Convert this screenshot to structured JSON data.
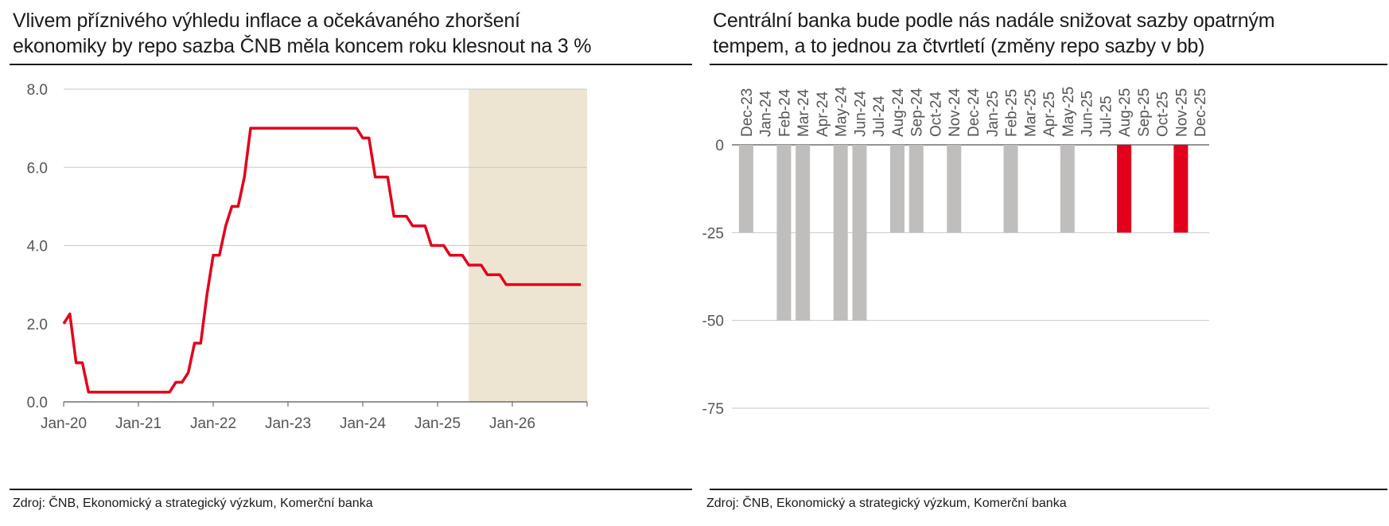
{
  "colors": {
    "accent": "#e3001b",
    "bar_gray": "#c0bdbd",
    "forecast_shade": "#ede5d1",
    "grid": "#c8c8c8",
    "axis_text": "#555555"
  },
  "left": {
    "title_line1": "Vlivem příznivého výhledu inflace a očekávaného zhoršení",
    "title_line2": "ekonomiky by repo sazba ČNB měla koncem roku klesnout na 3 %",
    "source": "Zdroj: ČNB, Ekonomický a strategický výzkum, Komerční banka"
  },
  "right": {
    "title_line1": "Centrální banka bude podle nás nadále snižovat sazby opatrným",
    "title_line2": "tempem, a to jednou za čtvrtletí (změny repo sazby v bb)",
    "source": "Zdroj: ČNB, Ekonomický a strategický výzkum, Komerční banka"
  },
  "chart_data": [
    {
      "type": "line",
      "ylim": [
        0,
        8
      ],
      "y_ticks": [
        "0.0",
        "2.0",
        "4.0",
        "6.0",
        "8.0"
      ],
      "x_ticks": [
        "Jan-20",
        "Jan-21",
        "Jan-22",
        "Jan-23",
        "Jan-24",
        "Jan-25",
        "Jan-26"
      ],
      "x_range": [
        "2020-01",
        "2026-12"
      ],
      "forecast_shade": [
        "2025-06",
        "2026-12"
      ],
      "series": [
        {
          "color": "#e3001b",
          "step": true,
          "x": [
            "2020-01",
            "2020-02",
            "2020-03",
            "2020-04",
            "2020-05",
            "2020-06",
            "2021-06",
            "2021-07",
            "2021-08",
            "2021-09",
            "2021-10",
            "2021-11",
            "2021-12",
            "2022-01",
            "2022-02",
            "2022-03",
            "2022-04",
            "2022-05",
            "2022-06",
            "2022-07",
            "2023-12",
            "2024-01",
            "2024-02",
            "2024-03",
            "2024-05",
            "2024-06",
            "2024-08",
            "2024-09",
            "2024-11",
            "2024-12",
            "2025-02",
            "2025-03",
            "2025-05",
            "2025-06",
            "2025-08",
            "2025-09",
            "2025-11",
            "2025-12",
            "2026-12"
          ],
          "y": [
            2.0,
            2.25,
            1.0,
            1.0,
            0.25,
            0.25,
            0.25,
            0.5,
            0.5,
            0.75,
            1.5,
            1.5,
            2.75,
            3.75,
            3.75,
            4.5,
            5.0,
            5.0,
            5.75,
            7.0,
            7.0,
            6.75,
            6.75,
            5.75,
            5.75,
            4.75,
            4.75,
            4.5,
            4.5,
            4.0,
            4.0,
            3.75,
            3.75,
            3.5,
            3.5,
            3.25,
            3.25,
            3.0,
            3.0
          ]
        }
      ]
    },
    {
      "type": "bar",
      "ylim": [
        -75,
        0
      ],
      "y_ticks": [
        "0",
        "-25",
        "-50",
        "-75"
      ],
      "categories": [
        "Dec-23",
        "Jan-24",
        "Feb-24",
        "Mar-24",
        "Apr-24",
        "May-24",
        "Jun-24",
        "Jul-24",
        "Aug-24",
        "Sep-24",
        "Oct-24",
        "Nov-24",
        "Dec-24",
        "Jan-25",
        "Feb-25",
        "Mar-25",
        "Apr-25",
        "May-25",
        "Jun-25",
        "Jul-25",
        "Aug-25",
        "Sep-25",
        "Oct-25",
        "Nov-25",
        "Dec-25"
      ],
      "values": [
        -25,
        0,
        -50,
        -50,
        0,
        -50,
        -50,
        0,
        -25,
        -25,
        0,
        -25,
        0,
        0,
        -25,
        0,
        0,
        -25,
        0,
        0,
        -25,
        0,
        0,
        -25,
        0
      ],
      "bar_colors": [
        "gray",
        "gray",
        "gray",
        "gray",
        "gray",
        "gray",
        "gray",
        "gray",
        "gray",
        "gray",
        "gray",
        "gray",
        "gray",
        "gray",
        "gray",
        "gray",
        "gray",
        "gray",
        "gray",
        "gray",
        "red",
        "gray",
        "gray",
        "red",
        "gray"
      ]
    }
  ]
}
